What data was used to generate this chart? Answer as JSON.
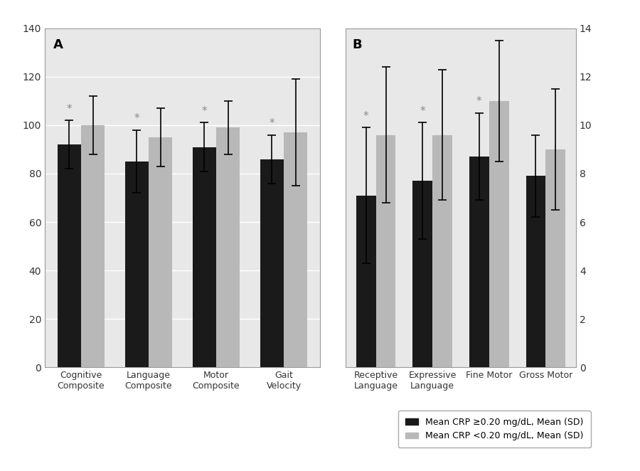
{
  "panel_A": {
    "label": "A",
    "categories": [
      "Cognitive\nComposite",
      "Language\nComposite",
      "Motor\nComposite",
      "Gait\nVelocity"
    ],
    "black_values": [
      92,
      85,
      91,
      86
    ],
    "grey_values": [
      100,
      95,
      99,
      97
    ],
    "black_errors": [
      10,
      13,
      10,
      10
    ],
    "grey_errors": [
      12,
      12,
      11,
      22
    ],
    "sig_black": [
      true,
      true,
      true,
      true
    ],
    "sig_grey": [
      false,
      false,
      false,
      false
    ],
    "ylim": [
      0,
      140
    ],
    "yticks": [
      0,
      20,
      40,
      60,
      80,
      100,
      120,
      140
    ]
  },
  "panel_B": {
    "label": "B",
    "categories": [
      "Receptive\nLanguage",
      "Expressive\nLanguage",
      "Fine Motor",
      "Gross Motor"
    ],
    "black_values": [
      7.1,
      7.7,
      8.7,
      7.9
    ],
    "grey_values": [
      9.6,
      9.6,
      11.0,
      9.0
    ],
    "black_errors": [
      2.8,
      2.4,
      1.8,
      1.7
    ],
    "grey_errors": [
      2.8,
      2.7,
      2.5,
      2.5
    ],
    "sig_black": [
      true,
      true,
      true,
      false
    ],
    "sig_grey": [
      false,
      false,
      false,
      false
    ],
    "ylim": [
      0,
      14
    ],
    "yticks": [
      0,
      2,
      4,
      6,
      8,
      10,
      12,
      14
    ]
  },
  "bar_width": 0.35,
  "black_color": "#1a1a1a",
  "grey_color": "#b8b8b8",
  "legend_labels": [
    "Mean CRP ≥0.20 mg/dL, Mean (SD)",
    "Mean CRP <0.20 mg/dL, Mean (SD)"
  ],
  "bg_color": "#ffffff",
  "plot_bg_color": "#e8e8e8",
  "grid_color": "#ffffff"
}
